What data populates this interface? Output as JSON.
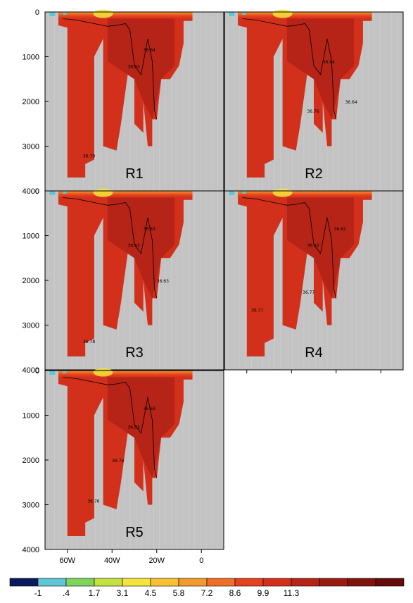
{
  "chart_data": {
    "type": "heatmap",
    "title": "",
    "xlabel": "",
    "ylabel": "",
    "x_ticks": [
      "60W",
      "40W",
      "20W",
      "0"
    ],
    "x_tick_values": [
      -60,
      -40,
      -20,
      0
    ],
    "xlim": [
      -70,
      10
    ],
    "y_ticks": [
      "0",
      "1000",
      "2000",
      "3000",
      "4000"
    ],
    "y_tick_values": [
      0,
      1000,
      2000,
      3000,
      4000
    ],
    "ylim": [
      4000,
      0
    ],
    "land_color": "#c3c3c3",
    "colorbar": {
      "labels": [
        "-1",
        ".4",
        "1.7",
        "3.1",
        "4.5",
        "5.8",
        "7.2",
        "8.6",
        "9.9",
        "11.3"
      ],
      "colors": [
        "#0b1a5c",
        "#5ec6d6",
        "#7ed35a",
        "#c3e03f",
        "#f3e33b",
        "#f7c133",
        "#f39a2d",
        "#ef6f28",
        "#e5421f",
        "#d2301b",
        "#b52416",
        "#981c12",
        "#7f140e",
        "#650c0a"
      ]
    },
    "panels": [
      {
        "label": "R1",
        "contours": [
          {
            "text": "36.64",
            "x": -26,
            "y": 880
          },
          {
            "text": "36.64",
            "x": -33,
            "y": 1250
          },
          {
            "text": "36.79",
            "x": -53,
            "y": 3250
          }
        ]
      },
      {
        "label": "R2",
        "contours": [
          {
            "text": "36.64",
            "x": -26,
            "y": 1150
          },
          {
            "text": "36.76",
            "x": -33,
            "y": 2250
          },
          {
            "text": "36.64",
            "x": -16,
            "y": 2050
          }
        ]
      },
      {
        "label": "R3",
        "contours": [
          {
            "text": "36.63",
            "x": -26,
            "y": 880
          },
          {
            "text": "36.63",
            "x": -33,
            "y": 1250
          },
          {
            "text": "36.63",
            "x": -20,
            "y": 2050
          },
          {
            "text": "36.78",
            "x": -53,
            "y": 3400
          }
        ]
      },
      {
        "label": "R4",
        "contours": [
          {
            "text": "36.62",
            "x": -21,
            "y": 880
          },
          {
            "text": "36.62",
            "x": -33,
            "y": 1250
          },
          {
            "text": "36.77",
            "x": -35,
            "y": 2300
          },
          {
            "text": "36.77",
            "x": -58,
            "y": 2700
          }
        ]
      },
      {
        "label": "R5",
        "contours": [
          {
            "text": "36.63",
            "x": -26,
            "y": 880
          },
          {
            "text": "36.63",
            "x": -33,
            "y": 1300
          },
          {
            "text": "36.76",
            "x": -40,
            "y": 2050
          },
          {
            "text": "36.76",
            "x": -51,
            "y": 2950
          }
        ]
      }
    ]
  }
}
